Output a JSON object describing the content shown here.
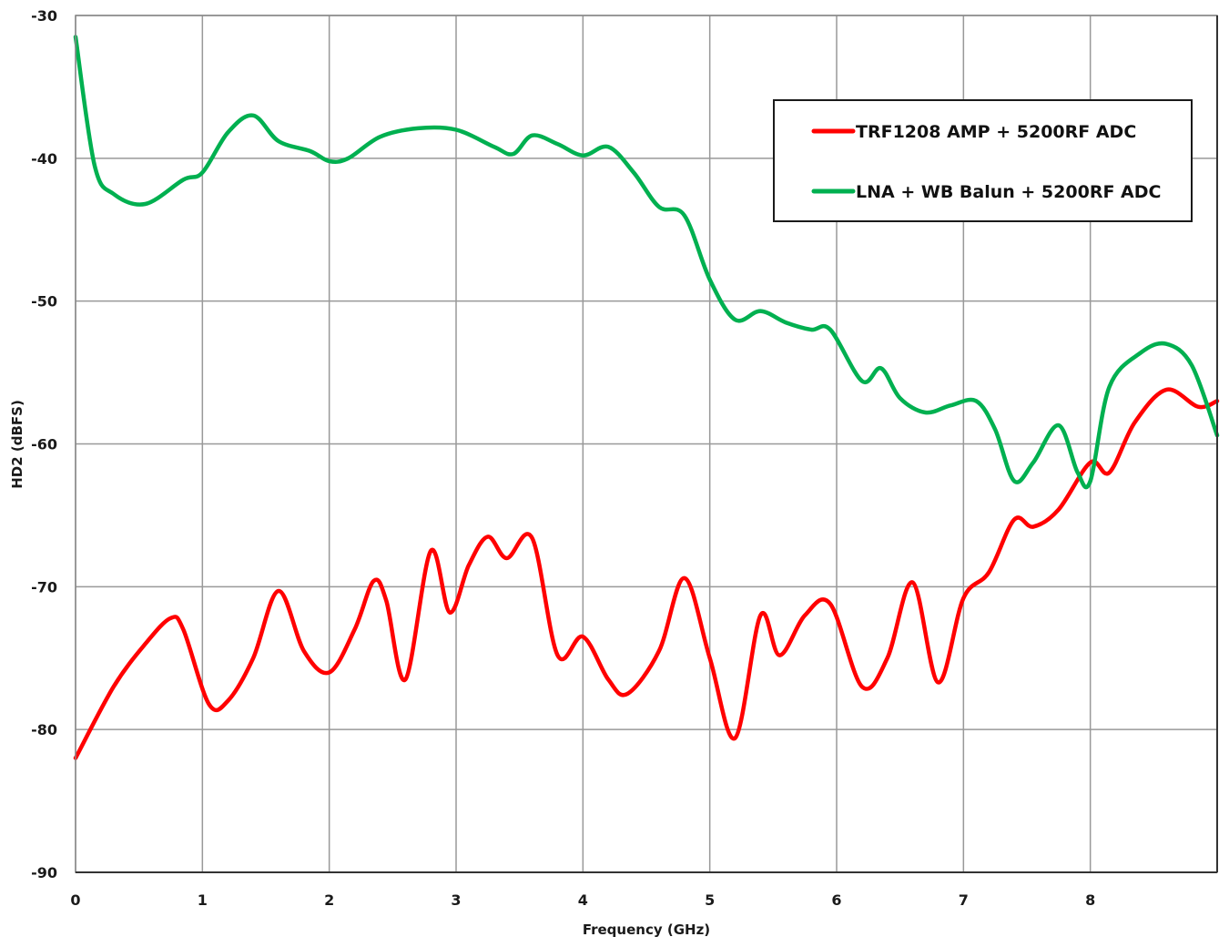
{
  "chart_data": {
    "type": "line",
    "title": "",
    "xlabel": "Frequency (GHz)",
    "ylabel": "HD2 (dBFS)",
    "xlim": [
      0,
      9
    ],
    "ylim": [
      -90,
      -30
    ],
    "xticks": [
      "0",
      "1",
      "2",
      "3",
      "4",
      "5",
      "6",
      "7",
      "8"
    ],
    "yticks": [
      "-30",
      "-40",
      "-50",
      "-60",
      "-70",
      "-80",
      "-90"
    ],
    "grid": true,
    "legend_position": "upper right",
    "series": [
      {
        "name": "TRF1208 AMP + 5200RF ADC",
        "color": "#ff0000",
        "x": [
          0,
          0.3,
          0.55,
          0.75,
          0.85,
          1.05,
          1.2,
          1.4,
          1.6,
          1.8,
          2.0,
          2.2,
          2.35,
          2.45,
          2.6,
          2.8,
          2.95,
          3.1,
          3.25,
          3.4,
          3.6,
          3.8,
          4.0,
          4.2,
          4.35,
          4.6,
          4.8,
          5.0,
          5.2,
          5.4,
          5.55,
          5.75,
          5.95,
          6.2,
          6.4,
          6.6,
          6.8,
          7.0,
          7.2,
          7.4,
          7.55,
          7.75,
          8.0,
          8.15,
          8.35,
          8.6,
          8.85,
          9.0
        ],
        "values": [
          -82,
          -77,
          -74,
          -72.2,
          -73,
          -78.2,
          -78,
          -75,
          -70.3,
          -74.5,
          -76,
          -73,
          -69.6,
          -71,
          -76.5,
          -67.5,
          -71.8,
          -68.5,
          -66.5,
          -68,
          -66.6,
          -74.8,
          -73.5,
          -76.5,
          -77.5,
          -74.5,
          -69.4,
          -75,
          -80.6,
          -72,
          -74.8,
          -72,
          -71.2,
          -77,
          -75,
          -69.7,
          -76.7,
          -70.8,
          -69,
          -65.3,
          -65.8,
          -64.6,
          -61.3,
          -62,
          -58.5,
          -56.2,
          -57.4,
          -57
        ]
      },
      {
        "name": "LNA + WB Balun + 5200RF ADC",
        "color": "#00b050",
        "x": [
          0,
          0.15,
          0.3,
          0.55,
          0.85,
          1.0,
          1.2,
          1.4,
          1.6,
          1.85,
          2.0,
          2.15,
          2.4,
          2.7,
          3.0,
          3.3,
          3.45,
          3.6,
          3.8,
          4.0,
          4.2,
          4.4,
          4.6,
          4.8,
          5.0,
          5.2,
          5.4,
          5.6,
          5.8,
          5.95,
          6.2,
          6.35,
          6.5,
          6.7,
          6.9,
          7.1,
          7.25,
          7.4,
          7.55,
          7.75,
          7.9,
          8.0,
          8.15,
          8.4,
          8.6,
          8.8,
          9.0
        ],
        "values": [
          -31.5,
          -40.5,
          -42.5,
          -43.2,
          -41.5,
          -41,
          -38.2,
          -37,
          -38.8,
          -39.5,
          -40.2,
          -40,
          -38.5,
          -37.9,
          -38,
          -39.2,
          -39.7,
          -38.4,
          -39,
          -39.8,
          -39.2,
          -41,
          -43.4,
          -44,
          -48.5,
          -51.3,
          -50.7,
          -51.5,
          -52,
          -52,
          -55.6,
          -54.7,
          -56.8,
          -57.8,
          -57.3,
          -57,
          -59,
          -62.6,
          -61.3,
          -58.7,
          -62,
          -62.6,
          -56,
          -53.6,
          -53,
          -54.5,
          -59.4
        ]
      }
    ]
  },
  "legend": {
    "items": [
      {
        "label": "TRF1208 AMP + 5200RF ADC",
        "color": "#ff0000"
      },
      {
        "label": "LNA + WB Balun + 5200RF ADC",
        "color": "#00b050"
      }
    ]
  },
  "axes": {
    "xlabel": "Frequency (GHz)",
    "ylabel": "HD2 (dBFS)"
  }
}
